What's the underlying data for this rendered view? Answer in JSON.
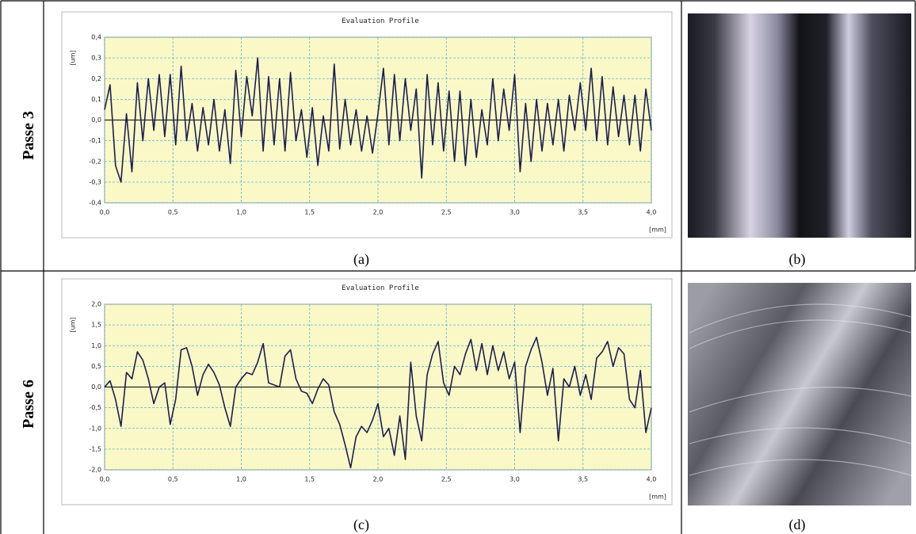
{
  "chart_data": [
    {
      "type": "line",
      "title": "Evaluation Profile",
      "y_label": "[um]",
      "x_label": "[mm]",
      "color": "#1b1f4d",
      "grid": true,
      "xlim": [
        0,
        4
      ],
      "ylim": [
        -0.4,
        0.4
      ],
      "xticks": [
        {
          "value": 0,
          "label": "0,0"
        },
        {
          "value": 0.5,
          "label": "0,5"
        },
        {
          "value": 1,
          "label": "1,0"
        },
        {
          "value": 1.5,
          "label": "1,5"
        },
        {
          "value": 2,
          "label": "2,0"
        },
        {
          "value": 2.5,
          "label": "2,5"
        },
        {
          "value": 3,
          "label": "3,0"
        },
        {
          "value": 3.5,
          "label": "3,5"
        },
        {
          "value": 4,
          "label": "4,0"
        }
      ],
      "yticks": [
        {
          "value": -0.4,
          "label": "-0,4"
        },
        {
          "value": -0.3,
          "label": "-0,3"
        },
        {
          "value": -0.2,
          "label": "-0,2"
        },
        {
          "value": -0.1,
          "label": "-0,1"
        },
        {
          "value": 0,
          "label": "0,0"
        },
        {
          "value": 0.1,
          "label": "0,1"
        },
        {
          "value": 0.2,
          "label": "0,2"
        },
        {
          "value": 0.3,
          "label": "0,3"
        },
        {
          "value": 0.4,
          "label": "0,4"
        }
      ],
      "x": [
        0,
        0.04,
        0.08,
        0.12,
        0.16,
        0.2,
        0.24,
        0.28,
        0.32,
        0.36,
        0.4,
        0.44,
        0.48,
        0.52,
        0.56,
        0.6,
        0.64,
        0.68,
        0.72,
        0.76,
        0.8,
        0.84,
        0.88,
        0.92,
        0.96,
        1,
        1.04,
        1.08,
        1.12,
        1.16,
        1.2,
        1.24,
        1.28,
        1.32,
        1.36,
        1.4,
        1.44,
        1.48,
        1.52,
        1.56,
        1.6,
        1.64,
        1.68,
        1.72,
        1.76,
        1.8,
        1.84,
        1.88,
        1.92,
        1.96,
        2,
        2.04,
        2.08,
        2.12,
        2.16,
        2.2,
        2.24,
        2.28,
        2.32,
        2.36,
        2.4,
        2.44,
        2.48,
        2.52,
        2.56,
        2.6,
        2.64,
        2.68,
        2.72,
        2.76,
        2.8,
        2.84,
        2.88,
        2.92,
        2.96,
        3,
        3.04,
        3.08,
        3.12,
        3.16,
        3.2,
        3.24,
        3.28,
        3.32,
        3.36,
        3.4,
        3.44,
        3.48,
        3.52,
        3.56,
        3.6,
        3.64,
        3.68,
        3.72,
        3.76,
        3.8,
        3.84,
        3.88,
        3.92,
        3.96,
        4
      ],
      "values": [
        0.05,
        0.17,
        -0.22,
        -0.3,
        0.03,
        -0.25,
        0.18,
        -0.1,
        0.2,
        -0.05,
        0.22,
        -0.08,
        0.22,
        -0.12,
        0.26,
        -0.1,
        0.08,
        -0.15,
        0.06,
        -0.12,
        0.1,
        -0.15,
        0.05,
        -0.21,
        0.24,
        -0.08,
        0.21,
        0.02,
        0.3,
        -0.15,
        0.21,
        -0.12,
        0.2,
        -0.15,
        0.23,
        -0.1,
        0.05,
        -0.18,
        0.06,
        -0.22,
        0.02,
        -0.15,
        0.27,
        -0.14,
        0.1,
        -0.12,
        0.05,
        -0.15,
        0.02,
        -0.16,
        0.03,
        0.25,
        -0.12,
        0.22,
        -0.1,
        0.2,
        -0.05,
        0.15,
        -0.28,
        0.22,
        -0.12,
        0.18,
        -0.15,
        0.14,
        -0.2,
        0.14,
        -0.22,
        0.1,
        -0.18,
        0.05,
        -0.12,
        0.2,
        -0.1,
        0.15,
        -0.05,
        0.22,
        -0.25,
        0.08,
        -0.2,
        0.1,
        -0.15,
        0.08,
        -0.12,
        0.1,
        -0.15,
        0.12,
        -0.05,
        0.18,
        -0.05,
        0.25,
        -0.1,
        0.21,
        -0.12,
        0.16,
        -0.08,
        0.12,
        -0.12,
        0.12,
        -0.15,
        0.15,
        -0.05
      ]
    },
    {
      "type": "line",
      "title": "Evaluation Profile",
      "y_label": "[um]",
      "x_label": "[mm]",
      "color": "#1b1f4d",
      "grid": true,
      "xlim": [
        0,
        4
      ],
      "ylim": [
        -2,
        2
      ],
      "xticks": [
        {
          "value": 0,
          "label": "0,0"
        },
        {
          "value": 0.5,
          "label": "0,5"
        },
        {
          "value": 1,
          "label": "1,0"
        },
        {
          "value": 1.5,
          "label": "1,5"
        },
        {
          "value": 2,
          "label": "2,0"
        },
        {
          "value": 2.5,
          "label": "2,5"
        },
        {
          "value": 3,
          "label": "3,0"
        },
        {
          "value": 3.5,
          "label": "3,5"
        },
        {
          "value": 4,
          "label": "4,0"
        }
      ],
      "yticks": [
        {
          "value": -2,
          "label": "-2,0"
        },
        {
          "value": -1.5,
          "label": "-1,5"
        },
        {
          "value": -1,
          "label": "-1,0"
        },
        {
          "value": -0.5,
          "label": "-0,5"
        },
        {
          "value": 0,
          "label": "0,0"
        },
        {
          "value": 0.5,
          "label": "0,5"
        },
        {
          "value": 1,
          "label": "1,0"
        },
        {
          "value": 1.5,
          "label": "1,5"
        },
        {
          "value": 2,
          "label": "2,0"
        }
      ],
      "x": [
        0,
        0.04,
        0.08,
        0.12,
        0.16,
        0.2,
        0.24,
        0.28,
        0.32,
        0.36,
        0.4,
        0.44,
        0.48,
        0.52,
        0.56,
        0.6,
        0.64,
        0.68,
        0.72,
        0.76,
        0.8,
        0.84,
        0.88,
        0.92,
        0.96,
        1,
        1.04,
        1.08,
        1.12,
        1.16,
        1.2,
        1.24,
        1.28,
        1.32,
        1.36,
        1.4,
        1.44,
        1.48,
        1.52,
        1.56,
        1.6,
        1.64,
        1.68,
        1.72,
        1.76,
        1.8,
        1.84,
        1.88,
        1.92,
        1.96,
        2,
        2.04,
        2.08,
        2.12,
        2.16,
        2.2,
        2.24,
        2.28,
        2.32,
        2.36,
        2.4,
        2.44,
        2.48,
        2.52,
        2.56,
        2.6,
        2.64,
        2.68,
        2.72,
        2.76,
        2.8,
        2.84,
        2.88,
        2.92,
        2.96,
        3,
        3.04,
        3.08,
        3.12,
        3.16,
        3.2,
        3.24,
        3.28,
        3.32,
        3.36,
        3.4,
        3.44,
        3.48,
        3.52,
        3.56,
        3.6,
        3.64,
        3.68,
        3.72,
        3.76,
        3.8,
        3.84,
        3.88,
        3.92,
        3.96,
        4
      ],
      "values": [
        0,
        0.15,
        -0.3,
        -0.95,
        0.35,
        0.2,
        0.85,
        0.65,
        0.2,
        -0.4,
        0,
        0.1,
        -0.9,
        -0.3,
        0.9,
        0.95,
        0.5,
        -0.2,
        0.3,
        0.55,
        0.35,
        0.05,
        -0.5,
        -0.95,
        0,
        0.2,
        0.35,
        0.3,
        0.6,
        1.05,
        0.1,
        0.05,
        0,
        0.75,
        0.9,
        0.2,
        -0.1,
        -0.15,
        -0.4,
        -0.05,
        0.2,
        0.05,
        -0.6,
        -0.9,
        -1.4,
        -1.95,
        -1.2,
        -0.95,
        -1.1,
        -0.8,
        -0.4,
        -1.2,
        -1,
        -1.65,
        -0.7,
        -1.75,
        0.6,
        -0.7,
        -1.3,
        0.3,
        0.8,
        1.1,
        0.1,
        -0.2,
        0.5,
        0.3,
        0.8,
        1.15,
        0.4,
        1.05,
        0.3,
        1,
        0.4,
        0.85,
        0.2,
        0.6,
        -1.1,
        0.5,
        0.9,
        1.2,
        0.6,
        -0.2,
        0.45,
        -1.3,
        0.2,
        0,
        0.5,
        -0.2,
        0.3,
        -0.3,
        0.7,
        0.85,
        1.1,
        0.5,
        0.95,
        0.8,
        -0.3,
        -0.5,
        0.4,
        -1.1,
        -0.5
      ]
    }
  ],
  "rows": [
    {
      "label": "Passe 3",
      "captions": [
        "(a)",
        "(b)"
      ]
    },
    {
      "label": "Passe 6",
      "captions": [
        "(c)",
        "(d)"
      ]
    }
  ]
}
